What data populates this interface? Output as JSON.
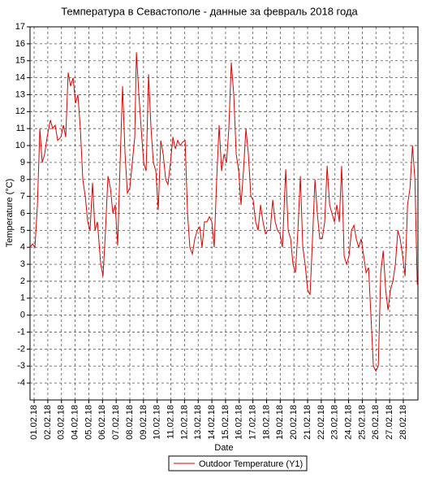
{
  "chart_data": {
    "type": "line",
    "title": "Температура в Севастополе - данные за февраль 2018 года",
    "y_label": "Temperature (°C)",
    "x_label": "Date",
    "xlim": [
      0.7,
      29.07
    ],
    "ylim": [
      -5,
      17
    ],
    "yticks": [
      -4,
      -3,
      -2,
      -1,
      0,
      1,
      2,
      3,
      4,
      5,
      6,
      7,
      8,
      9,
      10,
      11,
      12,
      13,
      14,
      15,
      16,
      17
    ],
    "xticks": [
      {
        "value": 1,
        "label": "01.02.18"
      },
      {
        "value": 2,
        "label": "02.02.18"
      },
      {
        "value": 3,
        "label": "03.02.18"
      },
      {
        "value": 4,
        "label": "04.02.18"
      },
      {
        "value": 5,
        "label": "05.02.18"
      },
      {
        "value": 6,
        "label": "06.02.18"
      },
      {
        "value": 7,
        "label": "07.02.18"
      },
      {
        "value": 8,
        "label": "08.02.18"
      },
      {
        "value": 9,
        "label": "09.02.18"
      },
      {
        "value": 10,
        "label": "10.02.18"
      },
      {
        "value": 11,
        "label": "11.02.18"
      },
      {
        "value": 12,
        "label": "12.02.18"
      },
      {
        "value": 13,
        "label": "13.02.18"
      },
      {
        "value": 14,
        "label": "14.02.18"
      },
      {
        "value": 15,
        "label": "15.02.18"
      },
      {
        "value": 16,
        "label": "16.02.18"
      },
      {
        "value": 17,
        "label": "17.02.18"
      },
      {
        "value": 18,
        "label": "18.02.18"
      },
      {
        "value": 19,
        "label": "19.02.18"
      },
      {
        "value": 20,
        "label": "20.02.18"
      },
      {
        "value": 21,
        "label": "21.02.18"
      },
      {
        "value": 22,
        "label": "22.02.18"
      },
      {
        "value": 23,
        "label": "23.02.18"
      },
      {
        "value": 24,
        "label": "24.02.18"
      },
      {
        "value": 25,
        "label": "25.02.18"
      },
      {
        "value": 26,
        "label": "26.02.18"
      },
      {
        "value": 27,
        "label": "27.02.18"
      },
      {
        "value": 28,
        "label": "28.02.18"
      }
    ],
    "grid": true,
    "x": [
      0.7,
      0.88,
      1.06,
      1.24,
      1.42,
      1.59,
      1.77,
      1.95,
      2.19,
      2.36,
      2.54,
      2.72,
      2.96,
      3.14,
      3.31,
      3.49,
      3.67,
      3.85,
      4.03,
      4.2,
      4.38,
      4.56,
      4.74,
      4.92,
      5.09,
      5.27,
      5.45,
      5.63,
      5.87,
      6.04,
      6.22,
      6.4,
      6.58,
      6.76,
      6.93,
      7.11,
      7.29,
      7.47,
      7.65,
      7.82,
      8.0,
      8.18,
      8.36,
      8.48,
      8.66,
      8.83,
      9.01,
      9.19,
      9.37,
      9.55,
      9.72,
      9.9,
      10.08,
      10.26,
      10.44,
      10.62,
      10.79,
      10.97,
      11.15,
      11.33,
      11.5,
      11.68,
      11.86,
      12.04,
      12.22,
      12.39,
      12.57,
      12.75,
      12.93,
      13.11,
      13.28,
      13.46,
      13.64,
      13.82,
      14.0,
      14.17,
      14.35,
      14.53,
      14.71,
      14.89,
      15.07,
      15.24,
      15.42,
      15.6,
      15.78,
      15.96,
      16.13,
      16.31,
      16.49,
      16.67,
      16.85,
      17.02,
      17.2,
      17.38,
      17.56,
      17.74,
      17.92,
      18.09,
      18.27,
      18.45,
      18.63,
      18.8,
      18.98,
      19.16,
      19.4,
      19.58,
      19.76,
      19.93,
      20.11,
      20.29,
      20.47,
      20.65,
      20.82,
      21.0,
      21.18,
      21.36,
      21.54,
      21.71,
      21.89,
      22.07,
      22.25,
      22.43,
      22.61,
      22.78,
      22.96,
      23.14,
      23.32,
      23.49,
      23.67,
      23.85,
      24.03,
      24.21,
      24.39,
      24.56,
      24.74,
      24.92,
      25.1,
      25.28,
      25.46,
      25.63,
      25.81,
      25.99,
      26.17,
      26.35,
      26.53,
      26.71,
      26.88,
      27.06,
      27.24,
      27.42,
      27.6,
      27.77,
      27.95,
      28.13,
      28.31,
      28.49,
      28.67,
      28.85,
      29.02
    ],
    "series": [
      {
        "name": "Outdoor Temperature (Y1)",
        "color": "#e00000",
        "values": [
          4.0,
          4.2,
          4.0,
          6.5,
          11.0,
          9.0,
          9.5,
          10.5,
          11.5,
          11.0,
          11.2,
          10.3,
          10.5,
          11.2,
          10.5,
          14.3,
          13.5,
          14.0,
          12.5,
          13.0,
          11.0,
          8.0,
          7.0,
          5.5,
          5.0,
          7.8,
          5.0,
          5.5,
          3.0,
          2.3,
          5.0,
          8.2,
          7.5,
          6.0,
          6.5,
          4.1,
          9.0,
          13.5,
          9.5,
          7.2,
          7.5,
          9.0,
          10.5,
          15.5,
          13.0,
          11.0,
          9.0,
          8.5,
          14.2,
          11.0,
          9.0,
          8.5,
          6.2,
          10.3,
          9.5,
          8.0,
          7.7,
          9.0,
          10.5,
          9.8,
          10.3,
          10.0,
          10.2,
          10.3,
          6.0,
          4.0,
          3.6,
          4.5,
          5.0,
          5.2,
          4.0,
          5.5,
          5.5,
          5.8,
          5.5,
          4.0,
          8.0,
          11.2,
          8.5,
          9.5,
          9.0,
          11.0,
          14.9,
          13.0,
          9.5,
          8.5,
          6.5,
          8.5,
          11.0,
          9.5,
          7.0,
          6.8,
          5.5,
          5.0,
          6.5,
          5.5,
          4.8,
          5.0,
          5.0,
          6.8,
          5.5,
          5.0,
          4.8,
          4.0,
          8.6,
          5.0,
          4.5,
          3.0,
          2.5,
          5.0,
          8.2,
          4.0,
          3.0,
          1.5,
          1.2,
          4.5,
          8.0,
          6.0,
          4.5,
          4.5,
          5.5,
          8.8,
          6.5,
          6.0,
          5.5,
          6.5,
          5.5,
          8.8,
          3.5,
          3.0,
          3.5,
          5.0,
          5.3,
          4.5,
          4.0,
          4.5,
          3.5,
          2.5,
          2.8,
          0.0,
          -3.0,
          -3.3,
          -3.0,
          2.5,
          3.8,
          1.5,
          0.3,
          1.5,
          2.0,
          3.0,
          5.0,
          4.5,
          3.5,
          2.3,
          6.5,
          7.5,
          10.0,
          8.0,
          1.8
        ]
      }
    ]
  }
}
